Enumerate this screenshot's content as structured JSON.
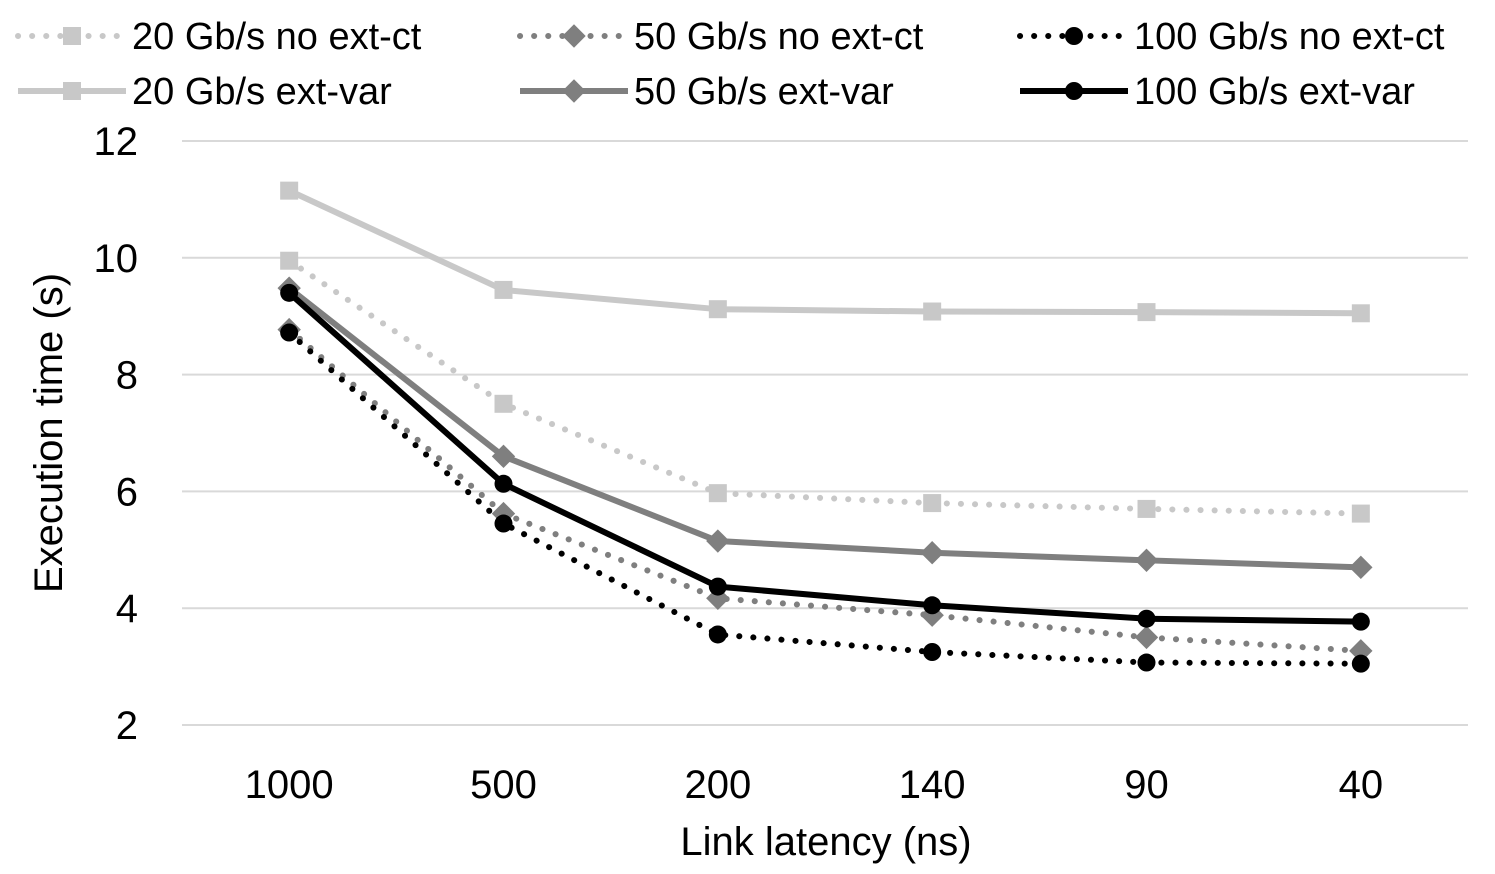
{
  "chart_data": {
    "type": "line",
    "title": "",
    "xlabel": "Link latency (ns)",
    "ylabel": "Execution time (s)",
    "categories": [
      "1000",
      "500",
      "200",
      "140",
      "90",
      "40"
    ],
    "ylim": [
      2,
      12
    ],
    "yticks": [
      2,
      4,
      6,
      8,
      10,
      12
    ],
    "grid": true,
    "legend_position": "top",
    "series": [
      {
        "name": "20 Gb/s no ext-ct",
        "values": [
          9.95,
          7.5,
          5.97,
          5.8,
          5.7,
          5.62
        ],
        "color": "#c8c8c8",
        "dash": "dotted",
        "marker": "square"
      },
      {
        "name": "50 Gb/s no ext-ct",
        "values": [
          8.77,
          5.62,
          4.17,
          3.88,
          3.5,
          3.27
        ],
        "color": "#7f7f7f",
        "dash": "dotted",
        "marker": "diamond"
      },
      {
        "name": "100 Gb/s no ext-ct",
        "values": [
          8.72,
          5.45,
          3.55,
          3.25,
          3.07,
          3.05
        ],
        "color": "#000000",
        "dash": "dotted",
        "marker": "circle"
      },
      {
        "name": "20 Gb/s ext-var",
        "values": [
          11.15,
          9.45,
          9.12,
          9.08,
          9.07,
          9.05
        ],
        "color": "#c8c8c8",
        "dash": "solid",
        "marker": "square"
      },
      {
        "name": "50 Gb/s ext-var",
        "values": [
          9.48,
          6.6,
          5.15,
          4.95,
          4.82,
          4.7
        ],
        "color": "#7f7f7f",
        "dash": "solid",
        "marker": "diamond"
      },
      {
        "name": "100 Gb/s ext-var",
        "values": [
          9.4,
          6.13,
          4.37,
          4.05,
          3.82,
          3.77
        ],
        "color": "#000000",
        "dash": "solid",
        "marker": "circle"
      }
    ]
  }
}
